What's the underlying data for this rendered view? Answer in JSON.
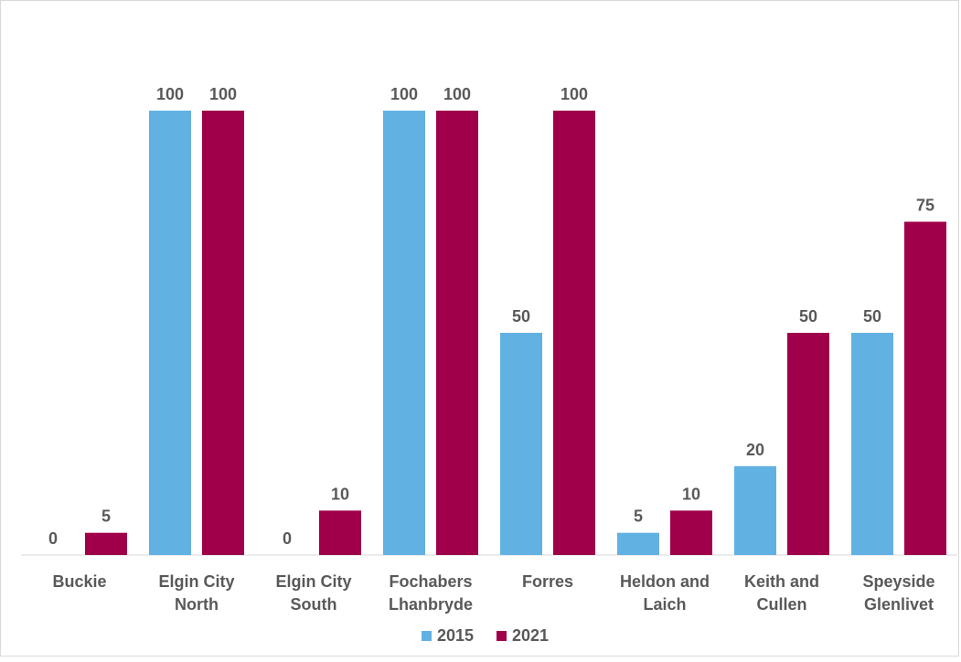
{
  "chart_data": {
    "type": "bar",
    "categories": [
      [
        "Buckie"
      ],
      [
        "Elgin City",
        "North"
      ],
      [
        "Elgin City",
        "South"
      ],
      [
        "Fochabers",
        "Lhanbryde"
      ],
      [
        "Forres"
      ],
      [
        "Heldon and",
        "Laich"
      ],
      [
        "Keith and",
        "Cullen"
      ],
      [
        "Speyside",
        "Glenlivet"
      ]
    ],
    "series": [
      {
        "name": "2015",
        "color": "#62b1e3",
        "values": [
          0,
          100,
          0,
          100,
          50,
          5,
          20,
          50
        ]
      },
      {
        "name": "2021",
        "color": "#a0004a",
        "values": [
          5,
          100,
          10,
          100,
          100,
          10,
          50,
          75
        ]
      }
    ],
    "ylim": [
      0,
      100
    ],
    "grid": false,
    "legend": "bottom",
    "data_labels": true
  }
}
